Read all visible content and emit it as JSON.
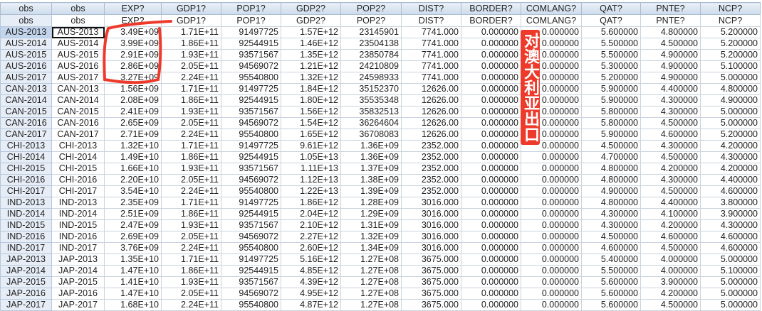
{
  "columns": [
    "obs",
    "EXP?",
    "GDP1?",
    "POP1?",
    "GDP2?",
    "POP2?",
    "DIST?",
    "BORDER?",
    "COMLANG?",
    "QAT?",
    "PNTE?",
    "NCP?"
  ],
  "row_header_label": "obs",
  "active_cell": "AUS-2013",
  "rows": [
    [
      "AUS-2013",
      "3.49E+09",
      "1.71E+11",
      "91497725",
      "1.57E+12",
      "23145901",
      "7741.000",
      "0.000000",
      "0.000000",
      "5.600000",
      "4.800000",
      "5.200000"
    ],
    [
      "AUS-2014",
      "3.99E+09",
      "1.86E+11",
      "92544915",
      "1.46E+12",
      "23504138",
      "7741.000",
      "0.000000",
      "0.000000",
      "5.500000",
      "4.500000",
      "5.200000"
    ],
    [
      "AUS-2015",
      "2.91E+09",
      "1.93E+11",
      "93571567",
      "1.35E+12",
      "23850784",
      "7741.000",
      "0.000000",
      "0.000000",
      "5.500000",
      "4.900000",
      "5.200000"
    ],
    [
      "AUS-2016",
      "2.86E+09",
      "2.05E+11",
      "94569072",
      "1.21E+12",
      "24210809",
      "7741.000",
      "0.000000",
      "0.000000",
      "5.300000",
      "4.900000",
      "5.100000"
    ],
    [
      "AUS-2017",
      "3.27E+09",
      "2.24E+11",
      "95540800",
      "1.32E+12",
      "24598933",
      "7741.000",
      "0.000000",
      "0.000000",
      "5.200000",
      "4.900000",
      "5.000000"
    ],
    [
      "CAN-2013",
      "1.56E+09",
      "1.71E+11",
      "91497725",
      "1.84E+12",
      "35152370",
      "12626.00",
      "0.000000",
      "0.000000",
      "5.900000",
      "4.400000",
      "4.800000"
    ],
    [
      "CAN-2014",
      "2.08E+09",
      "1.86E+11",
      "92544915",
      "1.80E+12",
      "35535348",
      "12626.00",
      "0.000000",
      "0.000000",
      "5.900000",
      "4.300000",
      "4.900000"
    ],
    [
      "CAN-2015",
      "2.41E+09",
      "1.93E+11",
      "93571567",
      "1.56E+12",
      "35832513",
      "12626.00",
      "0.000000",
      "0.000000",
      "5.800000",
      "4.300000",
      "5.000000"
    ],
    [
      "CAN-2016",
      "2.65E+09",
      "2.05E+11",
      "94569072",
      "1.54E+12",
      "36264604",
      "12626.00",
      "0.000000",
      "0.000000",
      "5.800000",
      "4.500000",
      "5.000000"
    ],
    [
      "CAN-2017",
      "2.71E+09",
      "2.24E+11",
      "95540800",
      "1.65E+12",
      "36708083",
      "12626.00",
      "0.000000",
      "0.000000",
      "5.900000",
      "4.600000",
      "5.200000"
    ],
    [
      "CHI-2013",
      "1.32E+10",
      "1.71E+11",
      "91497725",
      "9.61E+12",
      "1.36E+09",
      "2352.000",
      "0.000000",
      "0.000000",
      "4.500000",
      "4.300000",
      "4.200000"
    ],
    [
      "CHI-2014",
      "1.49E+10",
      "1.86E+11",
      "92544915",
      "1.05E+13",
      "1.36E+09",
      "2352.000",
      "0.000000",
      "0.000000",
      "4.700000",
      "4.500000",
      "4.300000"
    ],
    [
      "CHI-2015",
      "1.66E+10",
      "1.93E+11",
      "93571567",
      "1.11E+13",
      "1.37E+09",
      "2352.000",
      "0.000000",
      "0.000000",
      "4.800000",
      "4.200000",
      "4.200000"
    ],
    [
      "CHI-2016",
      "2.20E+10",
      "2.05E+11",
      "94569072",
      "1.12E+13",
      "1.38E+09",
      "2352.000",
      "0.000000",
      "0.000000",
      "4.800000",
      "4.300000",
      "4.400000"
    ],
    [
      "CHI-2017",
      "3.54E+10",
      "2.24E+11",
      "95540800",
      "1.22E+13",
      "1.39E+09",
      "2352.000",
      "0.000000",
      "0.000000",
      "4.900000",
      "4.500000",
      "4.600000"
    ],
    [
      "IND-2013",
      "2.35E+09",
      "1.71E+11",
      "91497725",
      "1.86E+12",
      "1.28E+09",
      "3016.000",
      "0.000000",
      "0.000000",
      "4.800000",
      "4.400000",
      "3.800000"
    ],
    [
      "IND-2014",
      "2.51E+09",
      "1.86E+11",
      "92544915",
      "2.04E+12",
      "1.29E+09",
      "3016.000",
      "0.000000",
      "0.000000",
      "4.300000",
      "4.100000",
      "3.900000"
    ],
    [
      "IND-2015",
      "2.47E+09",
      "1.93E+11",
      "93571567",
      "2.10E+12",
      "1.31E+09",
      "3016.000",
      "0.000000",
      "0.000000",
      "4.300000",
      "4.200000",
      "4.300000"
    ],
    [
      "IND-2016",
      "2.69E+09",
      "2.05E+11",
      "94569072",
      "2.27E+12",
      "1.32E+09",
      "3016.000",
      "0.000000",
      "0.000000",
      "4.500000",
      "4.600000",
      "4.600000"
    ],
    [
      "IND-2017",
      "3.76E+09",
      "2.24E+11",
      "95540800",
      "2.60E+12",
      "1.34E+09",
      "3016.000",
      "0.000000",
      "0.000000",
      "4.600000",
      "4.500000",
      "4.600000"
    ],
    [
      "JAP-2013",
      "1.35E+10",
      "1.71E+11",
      "91497725",
      "5.16E+12",
      "1.27E+08",
      "3675.000",
      "0.000000",
      "0.000000",
      "5.400000",
      "4.000000",
      "5.000000"
    ],
    [
      "JAP-2014",
      "1.47E+10",
      "1.86E+11",
      "92544915",
      "4.85E+12",
      "1.27E+08",
      "3675.000",
      "0.000000",
      "0.000000",
      "5.500000",
      "4.000000",
      "5.100000"
    ],
    [
      "JAP-2015",
      "1.41E+10",
      "1.93E+11",
      "93571567",
      "4.39E+12",
      "1.27E+08",
      "3675.000",
      "0.000000",
      "0.000000",
      "5.600000",
      "3.900000",
      "5.000000"
    ],
    [
      "JAP-2016",
      "1.47E+10",
      "2.05E+11",
      "94569072",
      "4.95E+12",
      "1.27E+08",
      "3675.000",
      "0.000000",
      "0.000000",
      "5.600000",
      "4.200000",
      "5.000000"
    ],
    [
      "JAP-2017",
      "1.68E+10",
      "2.24E+11",
      "95540800",
      "4.87E+12",
      "1.27E+08",
      "3675.000",
      "0.000000",
      "0.000000",
      "5.600000",
      "4.500000",
      "5.000000"
    ]
  ],
  "annotation": {
    "label": "对澳大利亚出口",
    "color": "#ee3a2a"
  },
  "colors": {
    "header_bg": "#cddbeb",
    "row_header_bg": "#e6edf6",
    "gridline": "#c9d3df"
  }
}
